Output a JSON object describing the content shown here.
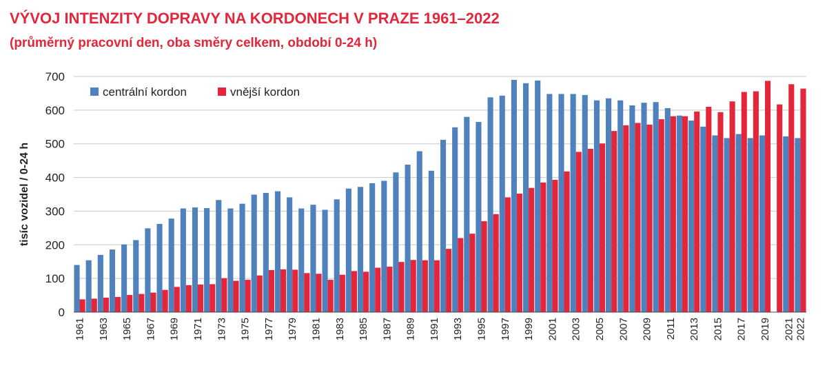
{
  "header": {
    "title": "VÝVOJ INTENZITY DOPRAVY NA KORDONECH V PRAZE 1961–2022",
    "subtitle": "(průměrný pracovní den, oba směry celkem, období 0-24 h)"
  },
  "colors": {
    "central": "#4f81bd",
    "outer": "#e3263a",
    "title": "#e3263a"
  },
  "chart_data": {
    "type": "bar",
    "title": "VÝVOJ INTENZITY DOPRAVY NA KORDONECH V PRAZE 1961–2022",
    "subtitle": "(průměrný pracovní den, oba směry celkem, období 0-24 h)",
    "xlabel": "",
    "ylabel": "tisíc vozidel / 0-24 h",
    "ylim": [
      0,
      700
    ],
    "yticks": [
      0,
      100,
      200,
      300,
      400,
      500,
      600,
      700
    ],
    "legend_position": "top-left",
    "categories": [
      1961,
      1962,
      1963,
      1964,
      1965,
      1966,
      1967,
      1968,
      1969,
      1970,
      1971,
      1972,
      1973,
      1974,
      1975,
      1976,
      1977,
      1978,
      1979,
      1980,
      1981,
      1982,
      1983,
      1984,
      1985,
      1986,
      1987,
      1988,
      1989,
      1990,
      1991,
      1992,
      1993,
      1994,
      1995,
      1996,
      1997,
      1998,
      1999,
      2000,
      2001,
      2002,
      2003,
      2004,
      2005,
      2006,
      2007,
      2008,
      2009,
      2010,
      2011,
      2012,
      2013,
      2014,
      2015,
      2016,
      2017,
      2018,
      2019,
      2020,
      2021,
      2022
    ],
    "tick_labels": [
      "1961",
      "",
      "1963",
      "",
      "1965",
      "",
      "1967",
      "",
      "1969",
      "",
      "1971",
      "",
      "1973",
      "",
      "1975",
      "",
      "1977",
      "",
      "1979",
      "",
      "1981",
      "",
      "1983",
      "",
      "1985",
      "",
      "1987",
      "",
      "1989",
      "",
      "1991",
      "",
      "1993",
      "",
      "1995",
      "",
      "1997",
      "",
      "1999",
      "",
      "2001",
      "",
      "2003",
      "",
      "2005",
      "",
      "2007",
      "",
      "2009",
      "",
      "2011",
      "",
      "2013",
      "",
      "2015",
      "",
      "2017",
      "",
      "2019",
      "",
      "2021",
      "2022"
    ],
    "series": [
      {
        "name": "centrální kordon",
        "values": [
          140,
          154,
          170,
          186,
          201,
          214,
          249,
          262,
          278,
          308,
          311,
          309,
          333,
          308,
          322,
          349,
          354,
          359,
          341,
          308,
          319,
          304,
          335,
          367,
          372,
          383,
          390,
          415,
          438,
          478,
          420,
          512,
          549,
          580,
          565,
          638,
          643,
          690,
          680,
          688,
          648,
          648,
          648,
          645,
          629,
          635,
          629,
          614,
          622,
          624,
          606,
          584,
          569,
          551,
          525,
          517,
          529,
          517,
          525,
          0,
          522,
          517
        ]
      },
      {
        "name": "vnější kordon",
        "values": [
          38,
          40,
          43,
          45,
          51,
          54,
          58,
          66,
          75,
          80,
          82,
          83,
          101,
          93,
          96,
          109,
          125,
          127,
          126,
          116,
          114,
          96,
          111,
          122,
          120,
          132,
          135,
          149,
          155,
          154,
          154,
          188,
          220,
          233,
          270,
          291,
          341,
          352,
          369,
          385,
          393,
          418,
          476,
          485,
          501,
          538,
          555,
          562,
          557,
          573,
          582,
          582,
          596,
          610,
          594,
          626,
          654,
          656,
          687,
          617,
          677,
          664
        ]
      }
    ]
  }
}
